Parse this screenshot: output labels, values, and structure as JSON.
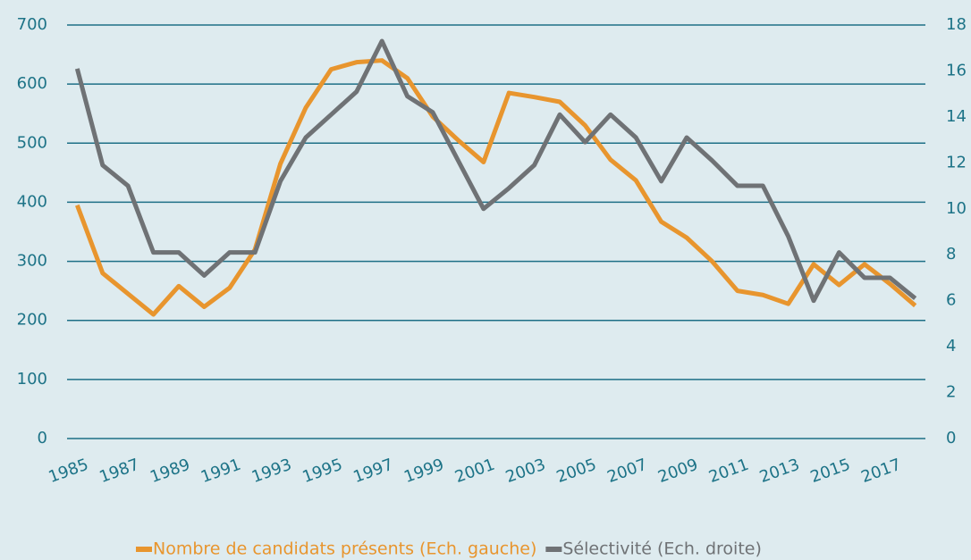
{
  "chart_data": {
    "type": "line",
    "x": [
      1985,
      1986,
      1987,
      1988,
      1989,
      1990,
      1991,
      1992,
      1993,
      1994,
      1995,
      1996,
      1997,
      1998,
      1999,
      2000,
      2001,
      2002,
      2003,
      2004,
      2005,
      2006,
      2007,
      2008,
      2009,
      2010,
      2011,
      2012,
      2013,
      2014,
      2015,
      2016,
      2017,
      2018
    ],
    "xlim": [
      1984.6,
      2018.4
    ],
    "xticks": [
      1985,
      1987,
      1989,
      1991,
      1993,
      1995,
      1997,
      1999,
      2001,
      2003,
      2005,
      2007,
      2009,
      2011,
      2013,
      2015,
      2017
    ],
    "ylim": [
      0,
      700
    ],
    "yticks": [
      0,
      100,
      200,
      300,
      400,
      500,
      600,
      700
    ],
    "y2lim": [
      0,
      18
    ],
    "y2ticks": [
      0,
      2,
      4,
      6,
      8,
      10,
      12,
      14,
      16,
      18
    ],
    "grid": true,
    "legend": "bottom",
    "series": [
      {
        "name": "Nombre de candidats présents (Ech. gauche)",
        "color": "#e8952e",
        "values": [
          395,
          280,
          245,
          210,
          258,
          223,
          255,
          320,
          465,
          560,
          625,
          637,
          640,
          610,
          545,
          505,
          468,
          585,
          578,
          570,
          530,
          472,
          437,
          367,
          340,
          300,
          250,
          243,
          228,
          295,
          260,
          295,
          262,
          225
        ]
      },
      {
        "name": "Sélectivité (Ech. droite)",
        "color": "#6f7275",
        "axis": "y2",
        "values": [
          16.1,
          11.9,
          11,
          8.1,
          8.1,
          7.1,
          8.1,
          8.1,
          11.2,
          13.1,
          14.1,
          15.1,
          17.3,
          14.9,
          14.2,
          12.1,
          10,
          10.9,
          11.9,
          14.1,
          12.9,
          14.1,
          13.1,
          11.2,
          13.1,
          12.1,
          11,
          11,
          8.8,
          6,
          8.1,
          7,
          7,
          6.1
        ]
      }
    ]
  }
}
